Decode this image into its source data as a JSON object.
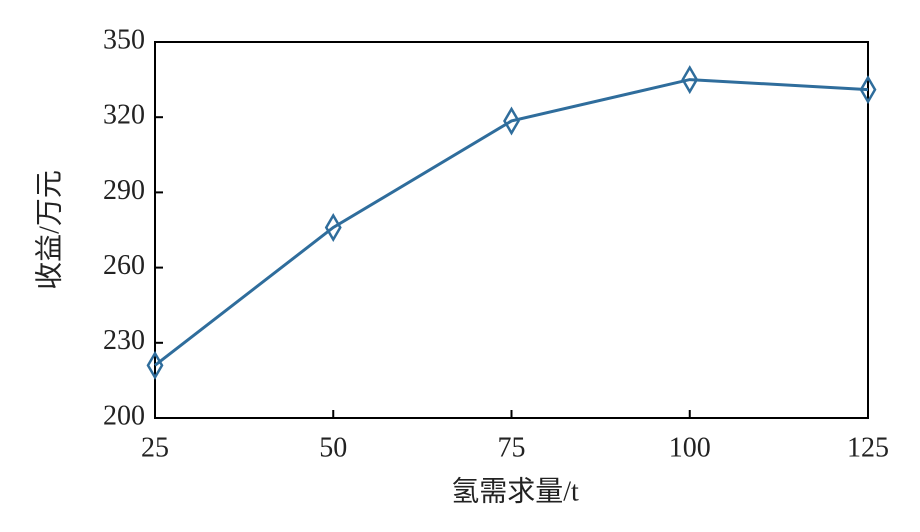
{
  "chart_data": {
    "type": "line",
    "x_label": "氢需求量/t",
    "y_label": "收益/万元",
    "series": [
      {
        "x": [
          25,
          50,
          75,
          100,
          125
        ],
        "values": [
          221,
          276,
          318.5,
          335,
          331
        ],
        "color": "#2f6d9c"
      }
    ],
    "xlim": [
      25,
      125
    ],
    "xticks": [
      25,
      50,
      75,
      100,
      125
    ],
    "ylim": [
      200,
      350
    ],
    "yticks": [
      200,
      230,
      260,
      290,
      320,
      350
    ],
    "marker": "diamond"
  }
}
